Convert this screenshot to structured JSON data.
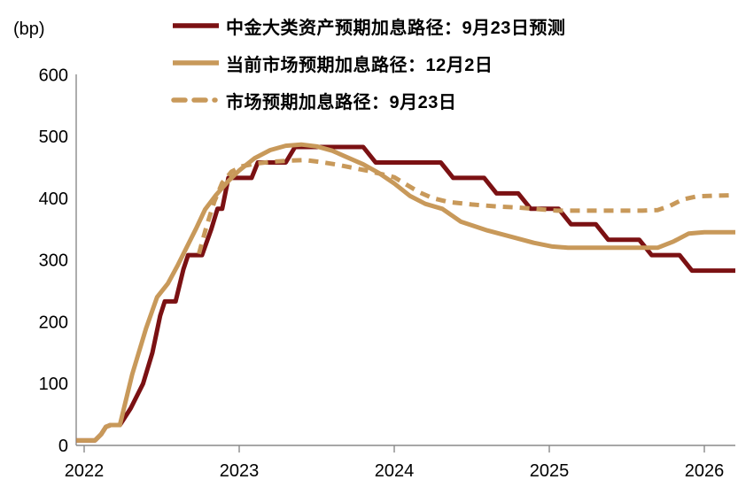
{
  "chart_data": {
    "type": "line",
    "title": "",
    "unit_label": "(bp)",
    "xlim": [
      2021.95,
      2026.2
    ],
    "ylim": [
      0,
      600
    ],
    "x_ticks": [
      2022,
      2023,
      2024,
      2025,
      2026
    ],
    "y_ticks": [
      0,
      100,
      200,
      300,
      400,
      500,
      600
    ],
    "grid": "off",
    "legend_position": "top-left",
    "axis_color": "#8a8a8a",
    "tick_label_color": "#000000",
    "series": [
      {
        "name": "中金大类资产预期加息路径：9月23日预测",
        "color": "#7B1113",
        "style": "solid",
        "points": [
          [
            2021.95,
            8
          ],
          [
            2022.07,
            8
          ],
          [
            2022.11,
            18
          ],
          [
            2022.14,
            30
          ],
          [
            2022.17,
            33
          ],
          [
            2022.23,
            33
          ],
          [
            2022.3,
            60
          ],
          [
            2022.38,
            100
          ],
          [
            2022.44,
            150
          ],
          [
            2022.49,
            210
          ],
          [
            2022.52,
            233
          ],
          [
            2022.59,
            233
          ],
          [
            2022.64,
            285
          ],
          [
            2022.67,
            308
          ],
          [
            2022.76,
            308
          ],
          [
            2022.82,
            350
          ],
          [
            2022.86,
            383
          ],
          [
            2022.89,
            383
          ],
          [
            2022.93,
            433
          ],
          [
            2023.08,
            433
          ],
          [
            2023.12,
            458
          ],
          [
            2023.3,
            458
          ],
          [
            2023.36,
            483
          ],
          [
            2023.8,
            483
          ],
          [
            2023.88,
            458
          ],
          [
            2024.3,
            458
          ],
          [
            2024.38,
            433
          ],
          [
            2024.58,
            433
          ],
          [
            2024.66,
            408
          ],
          [
            2024.8,
            408
          ],
          [
            2024.88,
            383
          ],
          [
            2025.06,
            383
          ],
          [
            2025.14,
            358
          ],
          [
            2025.3,
            358
          ],
          [
            2025.38,
            333
          ],
          [
            2025.58,
            333
          ],
          [
            2025.66,
            308
          ],
          [
            2025.84,
            308
          ],
          [
            2025.92,
            283
          ],
          [
            2026.2,
            283
          ]
        ]
      },
      {
        "name": "当前市场预期加息路径：12月2日",
        "color": "#C8995A",
        "style": "solid",
        "points": [
          [
            2021.95,
            8
          ],
          [
            2022.07,
            8
          ],
          [
            2022.11,
            18
          ],
          [
            2022.14,
            30
          ],
          [
            2022.17,
            33
          ],
          [
            2022.23,
            33
          ],
          [
            2022.31,
            115
          ],
          [
            2022.4,
            190
          ],
          [
            2022.47,
            240
          ],
          [
            2022.54,
            262
          ],
          [
            2022.6,
            290
          ],
          [
            2022.66,
            320
          ],
          [
            2022.72,
            350
          ],
          [
            2022.78,
            382
          ],
          [
            2022.85,
            405
          ],
          [
            2022.93,
            428
          ],
          [
            2023.0,
            445
          ],
          [
            2023.1,
            465
          ],
          [
            2023.2,
            478
          ],
          [
            2023.3,
            485
          ],
          [
            2023.4,
            487
          ],
          [
            2023.5,
            484
          ],
          [
            2023.6,
            477
          ],
          [
            2023.7,
            466
          ],
          [
            2023.8,
            455
          ],
          [
            2023.9,
            441
          ],
          [
            2024.0,
            424
          ],
          [
            2024.1,
            404
          ],
          [
            2024.2,
            391
          ],
          [
            2024.31,
            383
          ],
          [
            2024.43,
            362
          ],
          [
            2024.6,
            348
          ],
          [
            2024.75,
            338
          ],
          [
            2024.9,
            328
          ],
          [
            2025.02,
            322
          ],
          [
            2025.12,
            320
          ],
          [
            2025.7,
            320
          ],
          [
            2025.8,
            330
          ],
          [
            2025.9,
            343
          ],
          [
            2026.0,
            345
          ],
          [
            2026.2,
            345
          ]
        ]
      },
      {
        "name": "市场预期加息路径：9月23日",
        "color": "#C8995A",
        "style": "dashed",
        "points": [
          [
            2022.74,
            310
          ],
          [
            2022.79,
            355
          ],
          [
            2022.84,
            395
          ],
          [
            2022.89,
            425
          ],
          [
            2022.95,
            443
          ],
          [
            2023.02,
            452
          ],
          [
            2023.1,
            456
          ],
          [
            2023.2,
            459
          ],
          [
            2023.32,
            461
          ],
          [
            2023.42,
            462
          ],
          [
            2023.52,
            459
          ],
          [
            2023.62,
            455
          ],
          [
            2023.72,
            450
          ],
          [
            2023.82,
            445
          ],
          [
            2023.92,
            439
          ],
          [
            2024.0,
            434
          ],
          [
            2024.08,
            422
          ],
          [
            2024.16,
            410
          ],
          [
            2024.25,
            400
          ],
          [
            2024.35,
            394
          ],
          [
            2024.5,
            390
          ],
          [
            2024.65,
            387
          ],
          [
            2024.8,
            385
          ],
          [
            2024.95,
            382
          ],
          [
            2025.05,
            380
          ],
          [
            2025.6,
            380
          ],
          [
            2025.7,
            381
          ],
          [
            2025.78,
            388
          ],
          [
            2025.86,
            398
          ],
          [
            2025.95,
            403
          ],
          [
            2026.05,
            404
          ],
          [
            2026.2,
            405
          ]
        ]
      }
    ]
  }
}
